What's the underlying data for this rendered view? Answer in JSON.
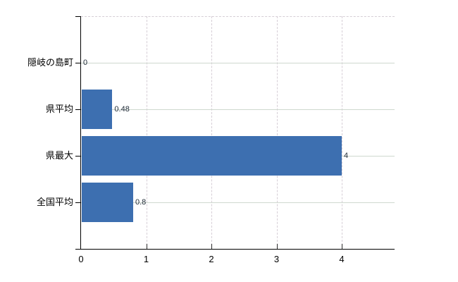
{
  "chart": {
    "background_color": "#ffffff",
    "bar_color": "#3d6fb0",
    "axis_color": "#000000",
    "grid_vertical_color": "#d6ced6",
    "grid_horizontal_color": "#cfd8cf",
    "label_color": "#000000",
    "data_label_color": "#1e2a36"
  },
  "chart_data": {
    "type": "bar",
    "orientation": "horizontal",
    "title": "",
    "xlabel": "",
    "ylabel": "",
    "categories": [
      "隠岐の島町",
      "県平均",
      "県最大",
      "全国平均"
    ],
    "values": [
      0,
      0.48,
      4,
      0.8
    ],
    "data_labels": [
      "0",
      "0.48",
      "4",
      "0.8"
    ],
    "x_ticks": [
      "0",
      "1",
      "2",
      "3",
      "4"
    ],
    "x_tick_values": [
      0,
      1,
      2,
      3,
      4
    ],
    "xlim": [
      0,
      4.81
    ],
    "grid": true,
    "legend": false,
    "legend_position": "none"
  }
}
